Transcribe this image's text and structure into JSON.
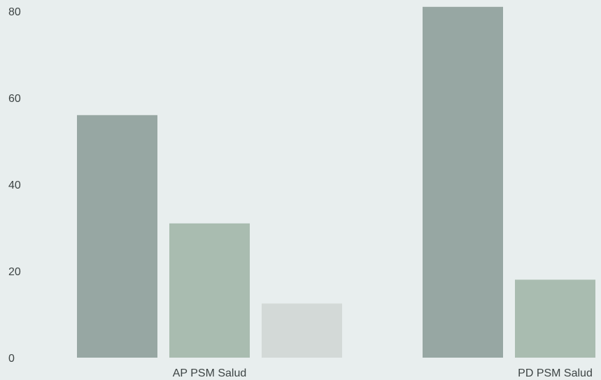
{
  "chart_data": {
    "type": "bar",
    "categories": [
      "AP PSM Salud",
      "PD PSM Salud"
    ],
    "series": [
      {
        "values": [
          56,
          81
        ],
        "color": "#97a7a3"
      },
      {
        "values": [
          31,
          18
        ],
        "color": "#a9bcb0"
      },
      {
        "values": [
          12.5,
          null
        ],
        "color": "#d3d9d7"
      }
    ],
    "yticks": [
      0,
      20,
      40,
      60,
      80
    ],
    "ylim": [
      0,
      82
    ],
    "grid": false,
    "legend": "none",
    "background": "#e8eeee"
  }
}
